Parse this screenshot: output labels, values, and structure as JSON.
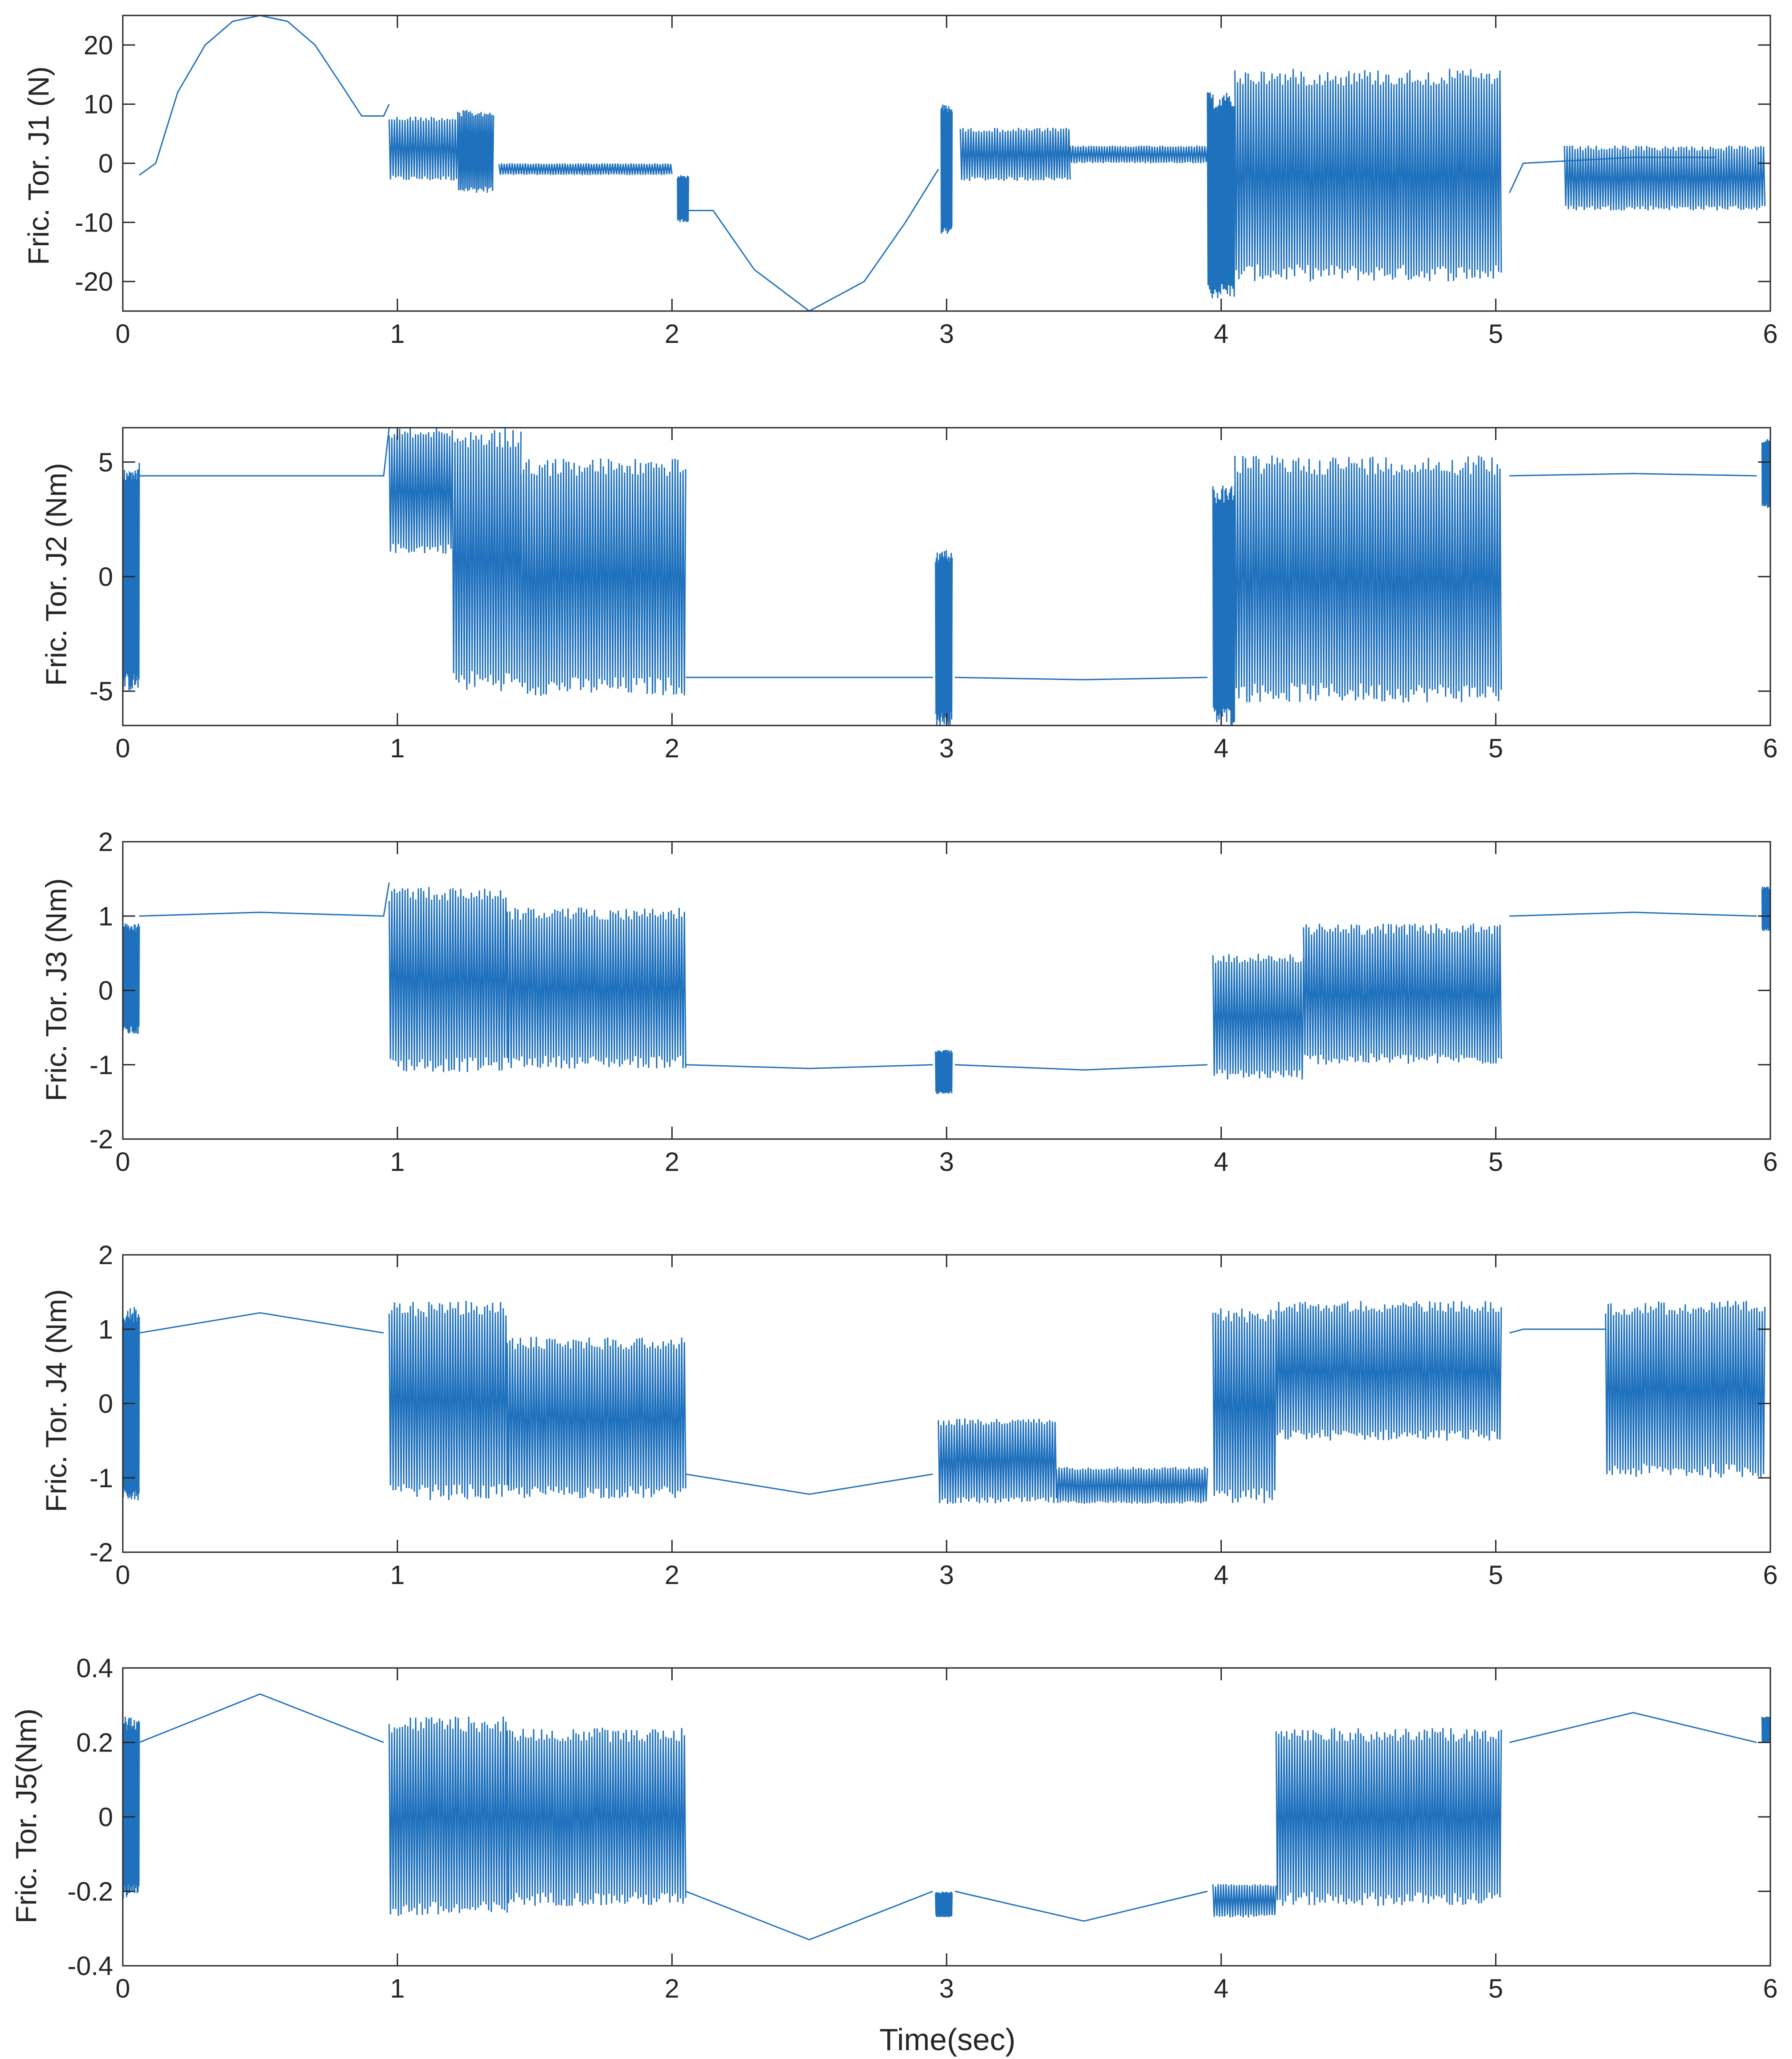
{
  "chart_data": [
    {
      "type": "line",
      "title": "",
      "xlabel": "",
      "ylabel": "Fric. Tor. J1 (N)",
      "xlim": [
        0,
        6
      ],
      "ylim": [
        -25,
        25
      ],
      "xticks": [
        "0",
        "1",
        "2",
        "3",
        "4",
        "5",
        "6"
      ],
      "yticks": [
        "20",
        "10",
        "0",
        "-10",
        "-20"
      ],
      "ytick_values": [
        20,
        10,
        0,
        -10,
        -20
      ],
      "grid": false,
      "series_color": "#1f71bd",
      "smooth": [
        [
          0.06,
          -2
        ],
        [
          0.12,
          0
        ],
        [
          0.2,
          12
        ],
        [
          0.3,
          20
        ],
        [
          0.4,
          24
        ],
        [
          0.5,
          25
        ],
        [
          0.6,
          24
        ],
        [
          0.7,
          20
        ],
        [
          0.8,
          13
        ],
        [
          0.87,
          8
        ],
        [
          0.95,
          8
        ],
        [
          0.97,
          10
        ]
      ],
      "bands": [
        [
          0.97,
          1.22,
          -3,
          8
        ],
        [
          1.22,
          1.35,
          -5,
          9
        ],
        [
          1.37,
          2.0,
          -2,
          0
        ],
        [
          2.02,
          2.06,
          -10,
          -2
        ],
        [
          2.98,
          3.02,
          -12,
          10
        ],
        [
          3.05,
          3.45,
          -3,
          6
        ],
        [
          3.45,
          3.95,
          0,
          3
        ],
        [
          3.95,
          4.05,
          -23,
          12
        ],
        [
          4.05,
          5.02,
          -20,
          16
        ],
        [
          5.25,
          5.98,
          -8,
          3
        ]
      ],
      "smooth2": [
        [
          2.06,
          -8
        ],
        [
          2.15,
          -8
        ],
        [
          2.3,
          -18
        ],
        [
          2.5,
          -25
        ],
        [
          2.7,
          -20
        ],
        [
          2.85,
          -10
        ],
        [
          2.97,
          -1
        ]
      ],
      "smooth3": [
        [
          5.05,
          -5
        ],
        [
          5.1,
          0
        ],
        [
          5.5,
          1
        ],
        [
          5.8,
          1
        ]
      ]
    },
    {
      "type": "line",
      "title": "",
      "xlabel": "",
      "ylabel": "Fric. Tor. J2 (Nm)",
      "xlim": [
        0,
        6
      ],
      "ylim": [
        -6.5,
        6.5
      ],
      "xticks": [
        "0",
        "1",
        "2",
        "3",
        "4",
        "5",
        "6"
      ],
      "yticks": [
        "5",
        "0",
        "-5"
      ],
      "ytick_values": [
        5,
        0,
        -5
      ],
      "grid": false,
      "series_color": "#1f71bd",
      "smooth": [
        [
          0.06,
          4.4
        ],
        [
          0.5,
          4.4
        ],
        [
          0.95,
          4.4
        ],
        [
          0.97,
          6.5
        ]
      ],
      "bands": [
        [
          0,
          0.06,
          -5,
          5
        ],
        [
          0.97,
          1.2,
          1,
          6.5
        ],
        [
          1.2,
          1.45,
          -5,
          6.5
        ],
        [
          1.45,
          2.05,
          -5.2,
          5.2
        ],
        [
          2.96,
          3.02,
          -6.5,
          1.2
        ],
        [
          3.97,
          4.05,
          -6.5,
          4
        ],
        [
          4.05,
          5.02,
          -5.5,
          5.3
        ],
        [
          5.97,
          6.0,
          3,
          6
        ]
      ],
      "smooth2": [
        [
          2.05,
          -4.4
        ],
        [
          2.5,
          -4.4
        ],
        [
          2.95,
          -4.4
        ]
      ],
      "smooth3": [
        [
          3.03,
          -4.4
        ],
        [
          3.5,
          -4.5
        ],
        [
          3.95,
          -4.4
        ]
      ],
      "smooth4": [
        [
          5.05,
          4.4
        ],
        [
          5.5,
          4.5
        ],
        [
          5.95,
          4.4
        ]
      ]
    },
    {
      "type": "line",
      "title": "",
      "xlabel": "",
      "ylabel": "Fric. Tor. J3 (Nm)",
      "xlim": [
        0,
        6
      ],
      "ylim": [
        -2,
        2
      ],
      "xticks": [
        "0",
        "1",
        "2",
        "3",
        "4",
        "5",
        "6"
      ],
      "yticks": [
        "2",
        "1",
        "0",
        "-1",
        "-2"
      ],
      "ytick_values": [
        2,
        1,
        0,
        -1,
        -2
      ],
      "grid": false,
      "series_color": "#1f71bd",
      "smooth": [
        [
          0.06,
          1.0
        ],
        [
          0.5,
          1.05
        ],
        [
          0.95,
          1.0
        ],
        [
          0.97,
          1.45
        ]
      ],
      "bands": [
        [
          0,
          0.06,
          -0.6,
          0.9
        ],
        [
          0.97,
          1.4,
          -1.1,
          1.4
        ],
        [
          1.4,
          2.05,
          -1.05,
          1.12
        ],
        [
          2.96,
          3.02,
          -1.4,
          -0.8
        ],
        [
          3.97,
          4.3,
          -1.2,
          0.5
        ],
        [
          4.3,
          5.02,
          -1.0,
          0.9
        ],
        [
          5.97,
          6.0,
          0.8,
          1.4
        ]
      ],
      "smooth2": [
        [
          2.05,
          -1.0
        ],
        [
          2.5,
          -1.05
        ],
        [
          2.95,
          -1.0
        ]
      ],
      "smooth3": [
        [
          3.03,
          -1.0
        ],
        [
          3.5,
          -1.07
        ],
        [
          3.95,
          -1.0
        ]
      ],
      "smooth4": [
        [
          5.05,
          1.0
        ],
        [
          5.5,
          1.05
        ],
        [
          5.95,
          1.0
        ]
      ]
    },
    {
      "type": "line",
      "title": "",
      "xlabel": "",
      "ylabel": "Fric. Tor. J4 (Nm)",
      "xlim": [
        0,
        6
      ],
      "ylim": [
        -2,
        2
      ],
      "xticks": [
        "0",
        "1",
        "2",
        "3",
        "4",
        "5",
        "6"
      ],
      "yticks": [
        "2",
        "1",
        "0",
        "-1",
        "-2"
      ],
      "ytick_values": [
        2,
        1,
        0,
        -1,
        -2
      ],
      "grid": false,
      "series_color": "#1f71bd",
      "smooth": [
        [
          0.06,
          0.95
        ],
        [
          0.5,
          1.22
        ],
        [
          0.95,
          0.95
        ]
      ],
      "bands": [
        [
          0,
          0.06,
          -1.3,
          1.3
        ],
        [
          0.97,
          1.4,
          -1.3,
          1.38
        ],
        [
          1.4,
          2.05,
          -1.28,
          0.9
        ],
        [
          2.97,
          3.4,
          -1.35,
          -0.2
        ],
        [
          3.4,
          3.95,
          -1.35,
          -0.85
        ],
        [
          3.97,
          4.2,
          -1.35,
          1.3
        ],
        [
          4.2,
          5.02,
          -0.5,
          1.38
        ],
        [
          5.4,
          5.98,
          -1.0,
          1.38
        ]
      ],
      "smooth2": [
        [
          2.05,
          -0.95
        ],
        [
          2.5,
          -1.22
        ],
        [
          2.95,
          -0.95
        ]
      ],
      "smooth3": [
        [
          5.05,
          0.95
        ],
        [
          5.1,
          1.0
        ],
        [
          5.4,
          1.0
        ]
      ]
    },
    {
      "type": "line",
      "title": "",
      "xlabel": "Time(sec)",
      "ylabel": "Fric. Tor. J5(Nm)",
      "xlim": [
        0,
        6
      ],
      "ylim": [
        -0.4,
        0.4
      ],
      "xticks": [
        "0",
        "1",
        "2",
        "3",
        "4",
        "5",
        "6"
      ],
      "yticks": [
        "0.4",
        "0.2",
        "0",
        "-0.2",
        "-0.4"
      ],
      "ytick_values": [
        0.4,
        0.2,
        0,
        -0.2,
        -0.4
      ],
      "grid": false,
      "series_color": "#1f71bd",
      "smooth": [
        [
          0.06,
          0.2
        ],
        [
          0.5,
          0.33
        ],
        [
          0.95,
          0.2
        ]
      ],
      "bands": [
        [
          0,
          0.06,
          -0.22,
          0.27
        ],
        [
          0.97,
          1.4,
          -0.27,
          0.27
        ],
        [
          1.4,
          2.05,
          -0.24,
          0.24
        ],
        [
          2.96,
          3.02,
          -0.27,
          -0.2
        ],
        [
          3.97,
          4.2,
          -0.27,
          -0.18
        ],
        [
          4.2,
          5.02,
          -0.24,
          0.24
        ],
        [
          5.97,
          6.0,
          0.2,
          0.27
        ]
      ],
      "smooth2": [
        [
          2.05,
          -0.2
        ],
        [
          2.5,
          -0.33
        ],
        [
          2.95,
          -0.2
        ]
      ],
      "smooth3": [
        [
          3.03,
          -0.2
        ],
        [
          3.5,
          -0.28
        ],
        [
          3.95,
          -0.2
        ]
      ],
      "smooth4": [
        [
          5.05,
          0.2
        ],
        [
          5.5,
          0.28
        ],
        [
          5.95,
          0.2
        ]
      ]
    }
  ]
}
